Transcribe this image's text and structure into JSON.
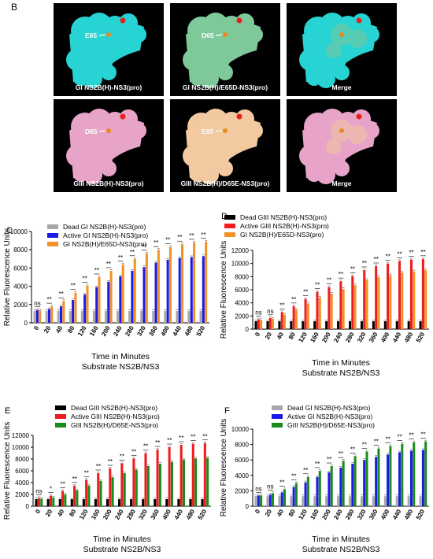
{
  "panel_b": {
    "letter": "B",
    "panels": [
      {
        "caption": "GI NS2B(H)-NS3(pro)",
        "residue_label": "E65",
        "protein_color": "#27d3d3"
      },
      {
        "caption": "GI NS2B(H)/E65D-NS3(pro)",
        "residue_label": "D65",
        "protein_color": "#7fc89a"
      },
      {
        "caption": "Merge",
        "residue_label": "",
        "protein_color": "#27d3d3"
      },
      {
        "caption": "GIII NS2B(H)-NS3(pro)",
        "residue_label": "D65",
        "protein_color": "#e7a3c8"
      },
      {
        "caption": "GIII NS2B(H)/D65E-NS3(pro)",
        "residue_label": "E65",
        "protein_color": "#f2c9a0"
      },
      {
        "caption": "Merge",
        "residue_label": "",
        "protein_color": "#e7a3c8"
      }
    ]
  },
  "chart_data": [
    {
      "panel": "C",
      "type": "bar",
      "xlabel": "Time in Minutes",
      "subtitle": "Substrate NS2B/NS3",
      "ylabel": "Relative Fluorescence Units",
      "ylim": [
        0,
        10000
      ],
      "yticks": [
        0,
        2000,
        4000,
        6000,
        8000,
        10000
      ],
      "categories": [
        "0",
        "20",
        "40",
        "80",
        "120",
        "160",
        "200",
        "240",
        "280",
        "320",
        "360",
        "400",
        "440",
        "480",
        "520"
      ],
      "legend_position": "top-left",
      "series": [
        {
          "name": "Dead GI NS2B(H)-NS3(pro)",
          "color": "#a8a8a8",
          "values": [
            1300,
            1300,
            1300,
            1300,
            1300,
            1300,
            1300,
            1300,
            1300,
            1300,
            1300,
            1300,
            1300,
            1300,
            1300
          ]
        },
        {
          "name": "Active GI NS2B(H)-NS3(pro)",
          "color": "#1a1ae6",
          "values": [
            1400,
            1500,
            1800,
            2500,
            3100,
            3900,
            4500,
            5100,
            5700,
            6100,
            6600,
            6900,
            7100,
            7200,
            7300
          ]
        },
        {
          "name": "GI NS2B(H)/E65D-NS3(pro)",
          "color": "#f0922a",
          "values": [
            1400,
            1800,
            2400,
            3300,
            4100,
            5000,
            5700,
            6400,
            7000,
            7600,
            8000,
            8300,
            8600,
            8800,
            8900
          ]
        }
      ],
      "significance": [
        "ns",
        "**",
        "**",
        "**",
        "**",
        "**",
        "**",
        "**",
        "**",
        "**",
        "**",
        "**",
        "**",
        "**",
        "**"
      ]
    },
    {
      "panel": "D",
      "type": "bar",
      "xlabel": "Time in Minutes",
      "subtitle": "Substrate NS2B/NS3",
      "ylabel": "Relative Fluorescence Units",
      "ylim": [
        0,
        12000
      ],
      "yticks": [
        0,
        2000,
        4000,
        6000,
        8000,
        10000,
        12000
      ],
      "categories": [
        "0",
        "20",
        "40",
        "80",
        "120",
        "160",
        "200",
        "240",
        "280",
        "320",
        "360",
        "400",
        "440",
        "480",
        "520"
      ],
      "legend_position": "top",
      "series": [
        {
          "name": "Dead GIII NS2B(H)-NS3(pro)",
          "color": "#000000",
          "values": [
            1200,
            1200,
            1200,
            1200,
            1200,
            1200,
            1200,
            1200,
            1200,
            1200,
            1200,
            1200,
            1200,
            1200,
            1200
          ]
        },
        {
          "name": "Active GIII NS2B(H)-NS3(pro)",
          "color": "#ee1c1c",
          "values": [
            1500,
            1700,
            2600,
            3500,
            4600,
            5700,
            6400,
            7300,
            8100,
            9000,
            9600,
            10000,
            10400,
            10600,
            10700
          ]
        },
        {
          "name": "GI NS2B(H)/E65D-NS3(pro)",
          "color": "#f0922a",
          "values": [
            1400,
            1600,
            2200,
            3000,
            3900,
            4800,
            5400,
            6100,
            6700,
            7500,
            7900,
            8200,
            8600,
            8800,
            9000
          ]
        }
      ],
      "significance": [
        "ns",
        "ns",
        "**",
        "**",
        "**",
        "**",
        "**",
        "**",
        "**",
        "**",
        "**",
        "**",
        "**",
        "**",
        "**"
      ]
    },
    {
      "panel": "E",
      "type": "bar",
      "xlabel": "Time in Minutes",
      "subtitle": "Substrate NS2B/NS3",
      "ylabel": "Relative Fluorescence Units",
      "ylim": [
        0,
        12000
      ],
      "yticks": [
        0,
        2000,
        4000,
        6000,
        8000,
        10000,
        12000
      ],
      "categories": [
        "0",
        "20",
        "40",
        "80",
        "120",
        "160",
        "200",
        "240",
        "280",
        "320",
        "360",
        "400",
        "440",
        "480",
        "520"
      ],
      "legend_position": "top-left",
      "series": [
        {
          "name": "Dead GIII NS2B(H)-NS3(pro)",
          "color": "#000000",
          "values": [
            1200,
            1200,
            1200,
            1200,
            1200,
            1200,
            1200,
            1200,
            1200,
            1200,
            1200,
            1200,
            1200,
            1200,
            1200
          ]
        },
        {
          "name": "Active GIII NS2B(H)-NS3(pro)",
          "color": "#ee1c1c",
          "values": [
            1400,
            1800,
            2600,
            3500,
            4500,
            5600,
            6400,
            7300,
            8100,
            9000,
            9600,
            10000,
            10400,
            10600,
            10700
          ]
        },
        {
          "name": "GIII NS2B(H)/D65E-NS3(pro)",
          "color": "#1a8a1a",
          "values": [
            1300,
            1500,
            2000,
            2700,
            3500,
            4300,
            4900,
            5600,
            6200,
            6800,
            7200,
            7500,
            7900,
            8100,
            8200
          ]
        }
      ],
      "significance": [
        "ns",
        "*",
        "**",
        "**",
        "**",
        "**",
        "**",
        "**",
        "**",
        "**",
        "**",
        "**",
        "**",
        "**",
        "**"
      ]
    },
    {
      "panel": "F",
      "type": "bar",
      "xlabel": "Time in Minutes",
      "subtitle": "Substrate NS2B/NS3",
      "ylabel": "Relative Fluorescence Units",
      "ylim": [
        0,
        10000
      ],
      "yticks": [
        0,
        2000,
        4000,
        6000,
        8000,
        10000
      ],
      "categories": [
        "0",
        "20",
        "40",
        "80",
        "120",
        "160",
        "200",
        "240",
        "280",
        "320",
        "360",
        "400",
        "440",
        "480",
        "520"
      ],
      "legend_position": "top-left",
      "series": [
        {
          "name": "Dead GI NS2B(H)-NS3(pro)",
          "color": "#a8a8a8",
          "values": [
            1300,
            1300,
            1300,
            1300,
            1300,
            1300,
            1300,
            1300,
            1300,
            1300,
            1300,
            1300,
            1300,
            1300,
            1300
          ]
        },
        {
          "name": "Active GI NS2B(H)-NS3(pro)",
          "color": "#1a1ae6",
          "values": [
            1400,
            1500,
            1800,
            2500,
            3100,
            3800,
            4400,
            5000,
            5500,
            6000,
            6400,
            6700,
            7000,
            7200,
            7300
          ]
        },
        {
          "name": "GIII NS2B(H)/D65E-NS3(pro)",
          "color": "#1a8a1a",
          "values": [
            1400,
            1700,
            2200,
            3000,
            3800,
            4600,
            5200,
            5900,
            6500,
            7100,
            7500,
            7800,
            8100,
            8300,
            8400
          ]
        }
      ],
      "significance": [
        "ns",
        "ns",
        "**",
        "**",
        "**",
        "**",
        "**",
        "**",
        "**",
        "**",
        "**",
        "**",
        "**",
        "**",
        "**"
      ]
    }
  ]
}
